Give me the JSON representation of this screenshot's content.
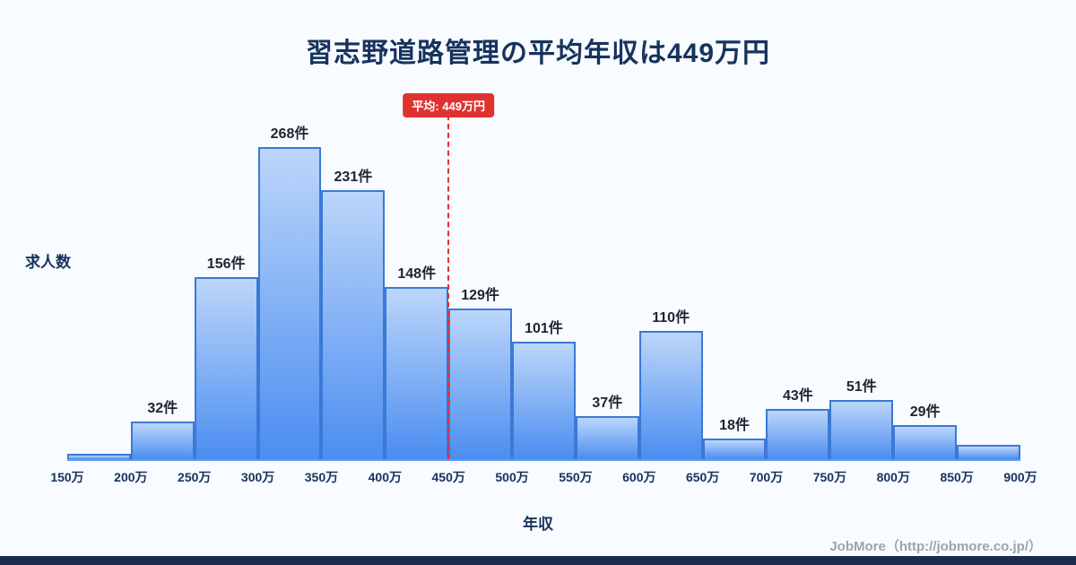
{
  "page": {
    "title": "習志野道路管理の平均年収は449万円",
    "footer": "JobMore（http://jobmore.co.jp/）"
  },
  "chart_data": {
    "type": "bar",
    "title": "習志野道路管理の平均年収は449万円",
    "xlabel": "年収",
    "ylabel": "求人数",
    "bin_edge_labels": [
      "150万",
      "200万",
      "250万",
      "300万",
      "350万",
      "400万",
      "450万",
      "500万",
      "550万",
      "600万",
      "650万",
      "700万",
      "750万",
      "800万",
      "850万",
      "900万"
    ],
    "values": [
      5,
      32,
      156,
      268,
      231,
      148,
      129,
      101,
      37,
      110,
      18,
      43,
      51,
      29,
      12
    ],
    "bar_labels": [
      "",
      "32件",
      "156件",
      "268件",
      "231件",
      "148件",
      "129件",
      "101件",
      "37件",
      "110件",
      "18件",
      "43件",
      "51件",
      "29件",
      ""
    ],
    "ylim": [
      0,
      290
    ],
    "grid": false,
    "legend": "none",
    "average_line": {
      "label": "平均: 449万円",
      "at_edge_label": "450万",
      "edge_index": 6,
      "color": "#e03131"
    },
    "colors": {
      "bar_top": "#bcd6fa",
      "bar_bottom": "#4b8df0",
      "bar_border": "#3b79d6",
      "axis": "#5e9cf5",
      "title_text": "#16335e",
      "accent_red": "#e03131",
      "background": "#f8fbff",
      "bottom_strip": "#1c2b4b"
    }
  }
}
